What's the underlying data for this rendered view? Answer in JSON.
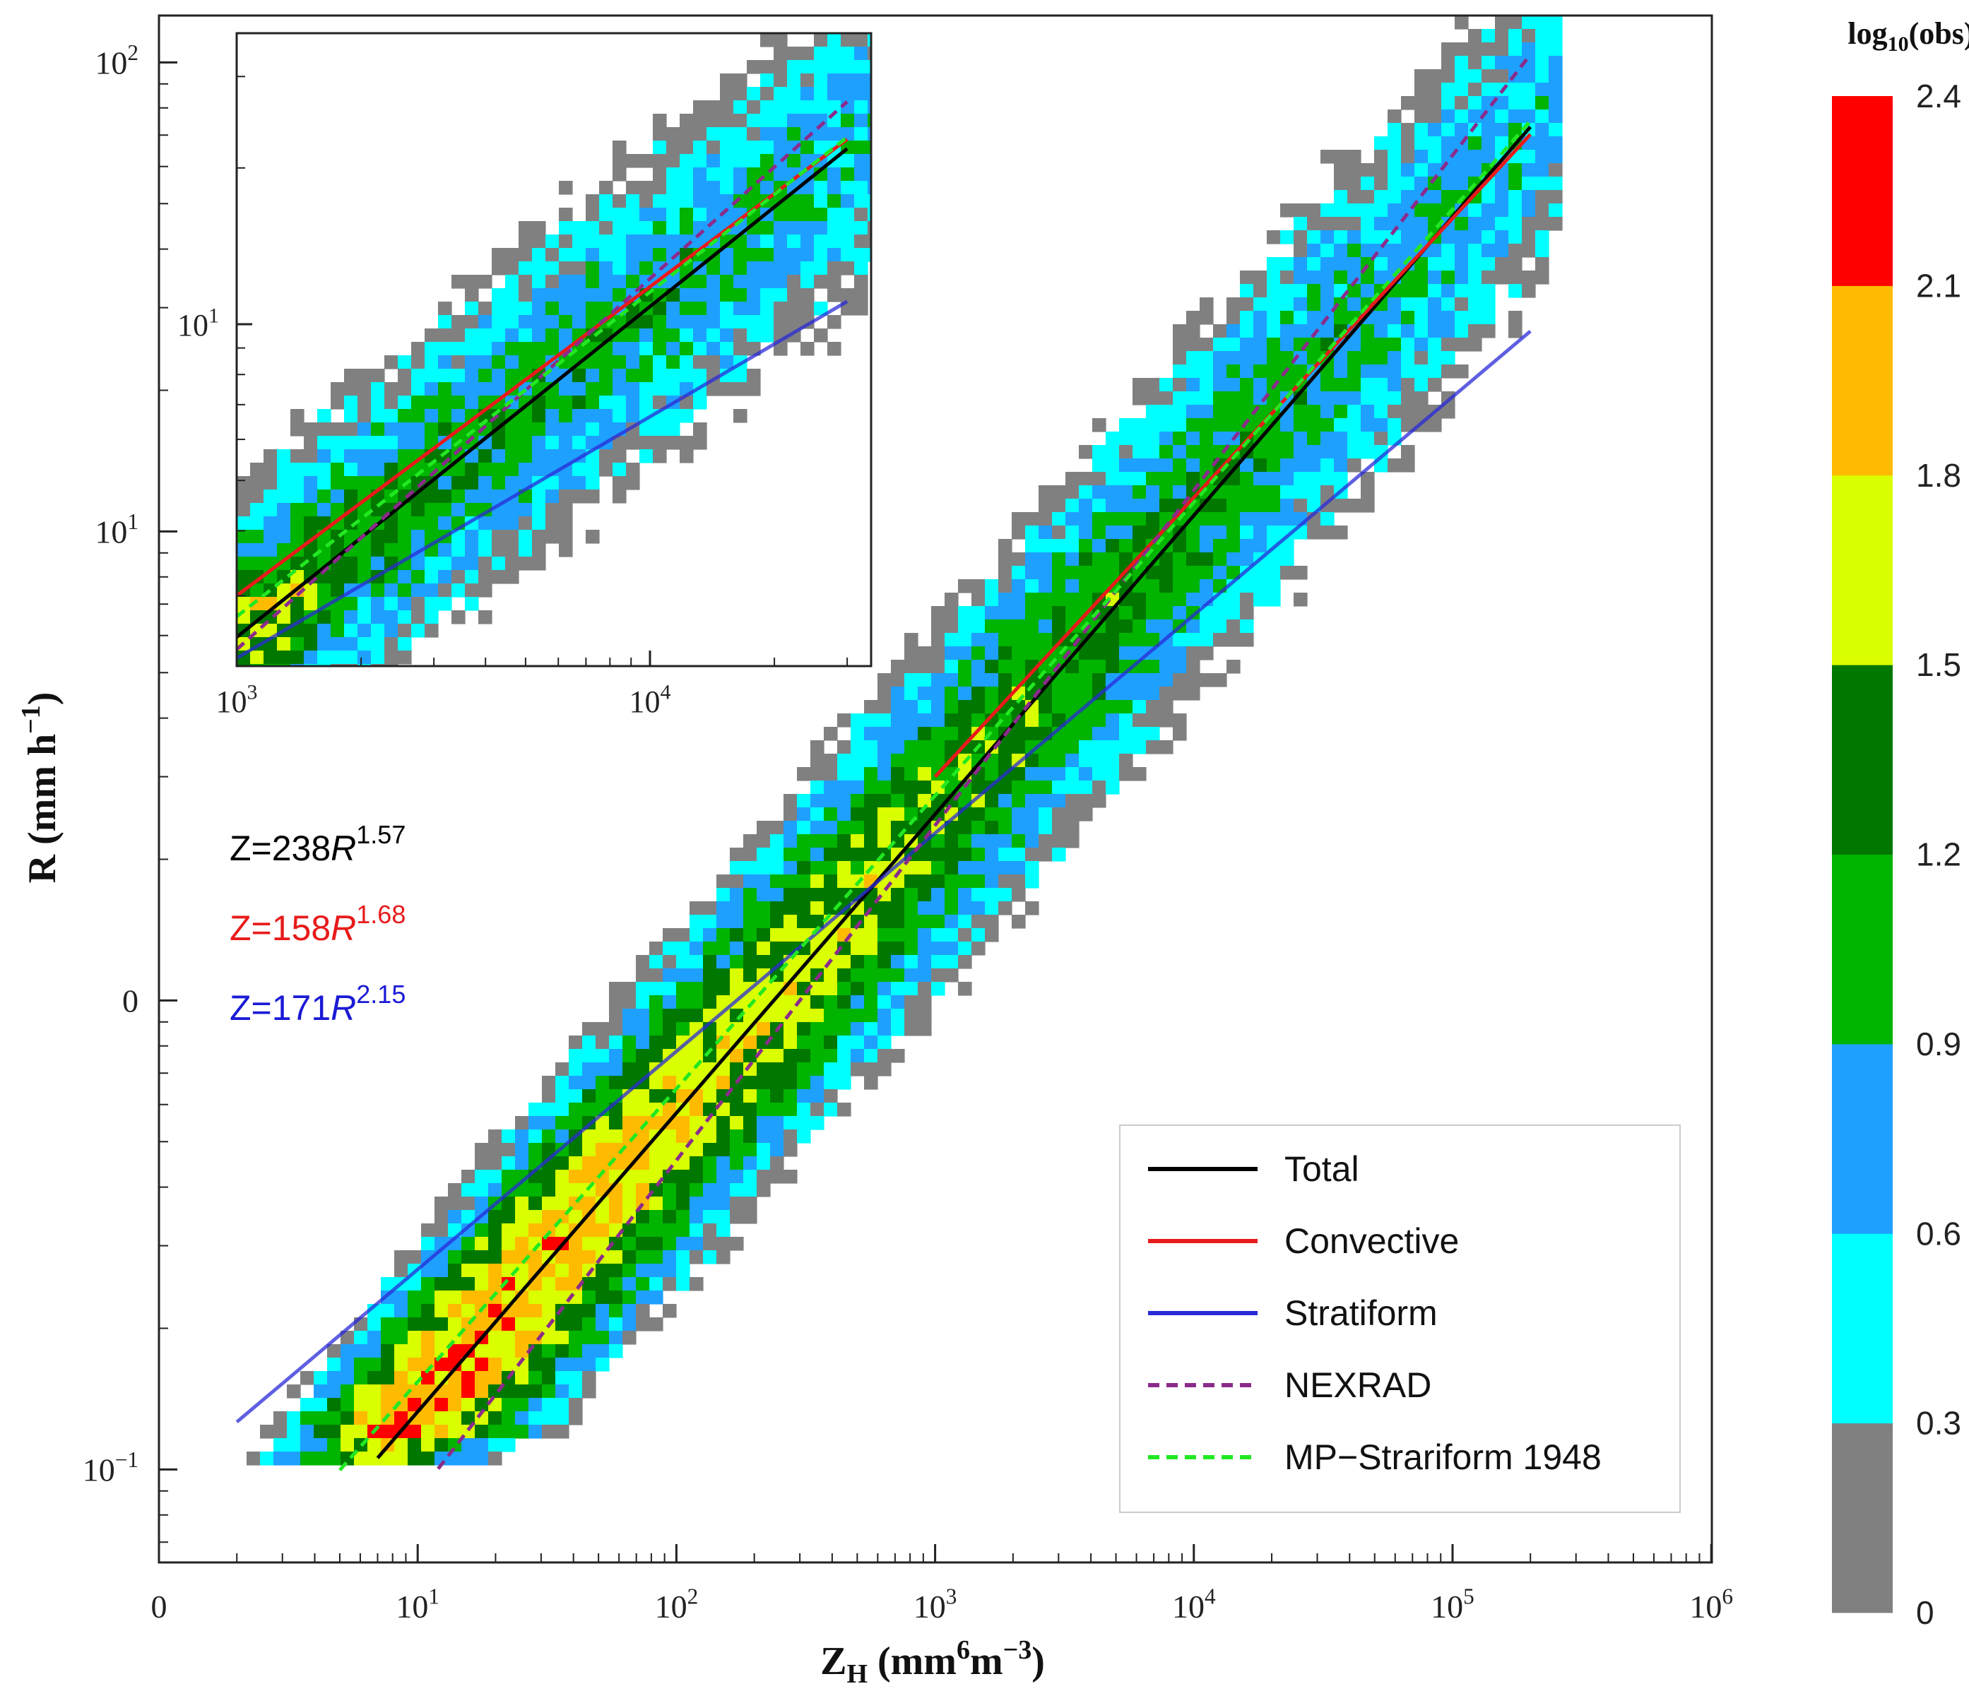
{
  "chart_data": {
    "type": "heatmap",
    "title": "",
    "xlabel": {
      "base": "Z",
      "sub": "H",
      "units_a": "mm",
      "units_sup_a": "6",
      "units_b": "m",
      "units_sup_b": "−3"
    },
    "ylabel": {
      "text": "R (mm h",
      "sup": "−1",
      "close": ")"
    },
    "x_scale": "log",
    "y_scale": "log",
    "xlim": [
      1,
      1000000
    ],
    "ylim": [
      0.08,
      200
    ],
    "x_ticks": [
      {
        "value": 1,
        "base": "0",
        "exp": ""
      },
      {
        "value": 10,
        "base": "10",
        "exp": "1"
      },
      {
        "value": 100,
        "base": "10",
        "exp": "2"
      },
      {
        "value": 1000,
        "base": "10",
        "exp": "3"
      },
      {
        "value": 10000,
        "base": "10",
        "exp": "4"
      },
      {
        "value": 100000,
        "base": "10",
        "exp": "5"
      },
      {
        "value": 1000000,
        "base": "10",
        "exp": "6"
      }
    ],
    "y_ticks": [
      {
        "value": 0.1,
        "base": "10",
        "exp": "−1"
      },
      {
        "value": 1,
        "base": "0",
        "exp": ""
      },
      {
        "value": 10,
        "base": "10",
        "exp": "1"
      },
      {
        "value": 100,
        "base": "10",
        "exp": "2"
      }
    ],
    "colorbar": {
      "title_base": "log",
      "title_sub": "10",
      "title_rest": "(obs)",
      "ticks": [
        "0",
        "0.3",
        "0.6",
        "0.9",
        "1.2",
        "1.5",
        "1.8",
        "2.1",
        "2.4"
      ],
      "colors": [
        "#808080",
        "#00ffff",
        "#1ea0ff",
        "#00b400",
        "#007800",
        "#d9ff00",
        "#ffbb00",
        "#ff0000"
      ]
    },
    "fits": [
      {
        "name": "Total",
        "color": "#000000",
        "dash": false,
        "a": 238,
        "b": 1.57,
        "zmin": 7,
        "zmax": 200000
      },
      {
        "name": "Convective",
        "color": "#e81b1b",
        "dash": false,
        "a": 158,
        "b": 1.68,
        "zmin": 1000,
        "zmax": 200000
      },
      {
        "name": "Stratiform",
        "color": "#2a2ad8",
        "dash": false,
        "a": 171,
        "b": 2.15,
        "zmin": 2,
        "zmax": 200000
      },
      {
        "name": "NEXRAD",
        "color": "#8b2b8b",
        "dash": true,
        "a": 300,
        "b": 1.4,
        "zmin": 12,
        "zmax": 200000
      },
      {
        "name": "MP−Strariform 1948",
        "color": "#22e822",
        "dash": true,
        "a": 200,
        "b": 1.6,
        "zmin": 5,
        "zmax": 200000
      }
    ],
    "equations": [
      {
        "prefix": "Z=238",
        "var": "R",
        "exp": "1.57",
        "color": "#000000"
      },
      {
        "prefix": "Z=158",
        "var": "R",
        "exp": "1.68",
        "color": "#e81b1b"
      },
      {
        "prefix": "Z=171",
        "var": "R",
        "exp": "2.15",
        "color": "#1a1ad6"
      }
    ],
    "legend": {
      "position": "bottom-right",
      "entries": [
        "Total",
        "Convective",
        "Stratiform",
        "NEXRAD",
        "MP−Strariform 1948"
      ]
    },
    "inset": {
      "xlim": [
        1000,
        30000
      ],
      "ylim": [
        5,
        110
      ],
      "x_ticks": [
        {
          "value": 1000,
          "base": "10",
          "exp": "3"
        },
        {
          "value": 10000,
          "base": "10",
          "exp": "4"
        }
      ],
      "y_ticks": [
        {
          "value": 10,
          "base": "10",
          "exp": "1"
        }
      ]
    },
    "grid": false
  }
}
